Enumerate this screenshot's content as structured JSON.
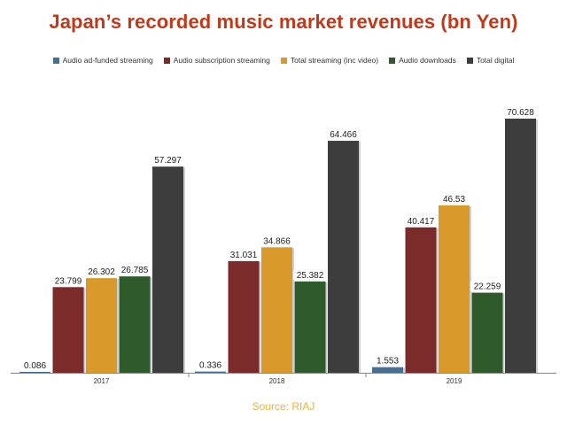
{
  "chart_data": {
    "type": "bar",
    "title": "Japan’s recorded music market revenues (bn Yen)",
    "categories": [
      "2017",
      "2018",
      "2019"
    ],
    "series": [
      {
        "name": "Audio ad-funded streaming",
        "color": "#4a6e93",
        "values": [
          0.086,
          0.336,
          1.553
        ],
        "labels": [
          "0.086",
          "0.336",
          "1.553"
        ]
      },
      {
        "name": "Audio subscription streaming",
        "color": "#7c2b2b",
        "values": [
          23.799,
          31.031,
          40.417
        ],
        "labels": [
          "23.799",
          "31.031",
          "40.417"
        ]
      },
      {
        "name": "Total streaming (inc video)",
        "color": "#d99a2b",
        "values": [
          26.302,
          34.866,
          46.53
        ],
        "labels": [
          "26.302",
          "34.866",
          "46.53"
        ]
      },
      {
        "name": "Audio downloads",
        "color": "#2f5a2b",
        "values": [
          26.785,
          25.382,
          22.259
        ],
        "labels": [
          "26.785",
          "25.382",
          "22.259"
        ]
      },
      {
        "name": "Total digital",
        "color": "#3d3d3d",
        "values": [
          57.297,
          64.466,
          70.628
        ],
        "labels": [
          "57.297",
          "64.466",
          "70.628"
        ]
      }
    ],
    "xlabel": "",
    "ylabel": "",
    "ylim": [
      0,
      80
    ],
    "grid": false,
    "legend": "top"
  },
  "source": "Source: RIAJ"
}
